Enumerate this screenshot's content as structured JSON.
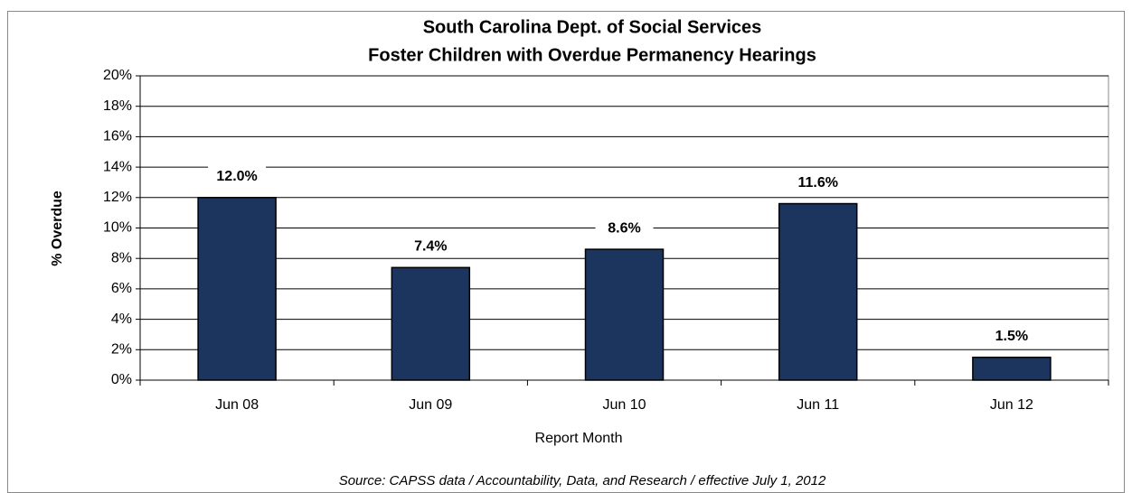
{
  "chart_data": {
    "type": "bar",
    "title": "South Carolina Dept. of Social Services",
    "subtitle": "Foster Children with Overdue Permanency Hearings",
    "x_label": "Report Month",
    "y_label": "% Overdue",
    "source": "Source: CAPSS data / Accountability, Data, and Research / effective July 1, 2012",
    "categories": [
      "Jun 08",
      "Jun 09",
      "Jun 10",
      "Jun 11",
      "Jun 12"
    ],
    "values": [
      12.0,
      7.4,
      8.6,
      11.6,
      1.5
    ],
    "value_labels": [
      "12.0%",
      "7.4%",
      "8.6%",
      "11.6%",
      "1.5%"
    ],
    "color": "#1c355e",
    "ylim": [
      0,
      20
    ],
    "yticks": [
      {
        "value": 0,
        "label": "0%"
      },
      {
        "value": 2,
        "label": "2%"
      },
      {
        "value": 4,
        "label": "4%"
      },
      {
        "value": 6,
        "label": "6%"
      },
      {
        "value": 8,
        "label": "8%"
      },
      {
        "value": 10,
        "label": "10%"
      },
      {
        "value": 12,
        "label": "12%"
      },
      {
        "value": 14,
        "label": "14%"
      },
      {
        "value": 16,
        "label": "16%"
      },
      {
        "value": 18,
        "label": "18%"
      },
      {
        "value": 20,
        "label": "20%"
      }
    ],
    "grid": true
  }
}
